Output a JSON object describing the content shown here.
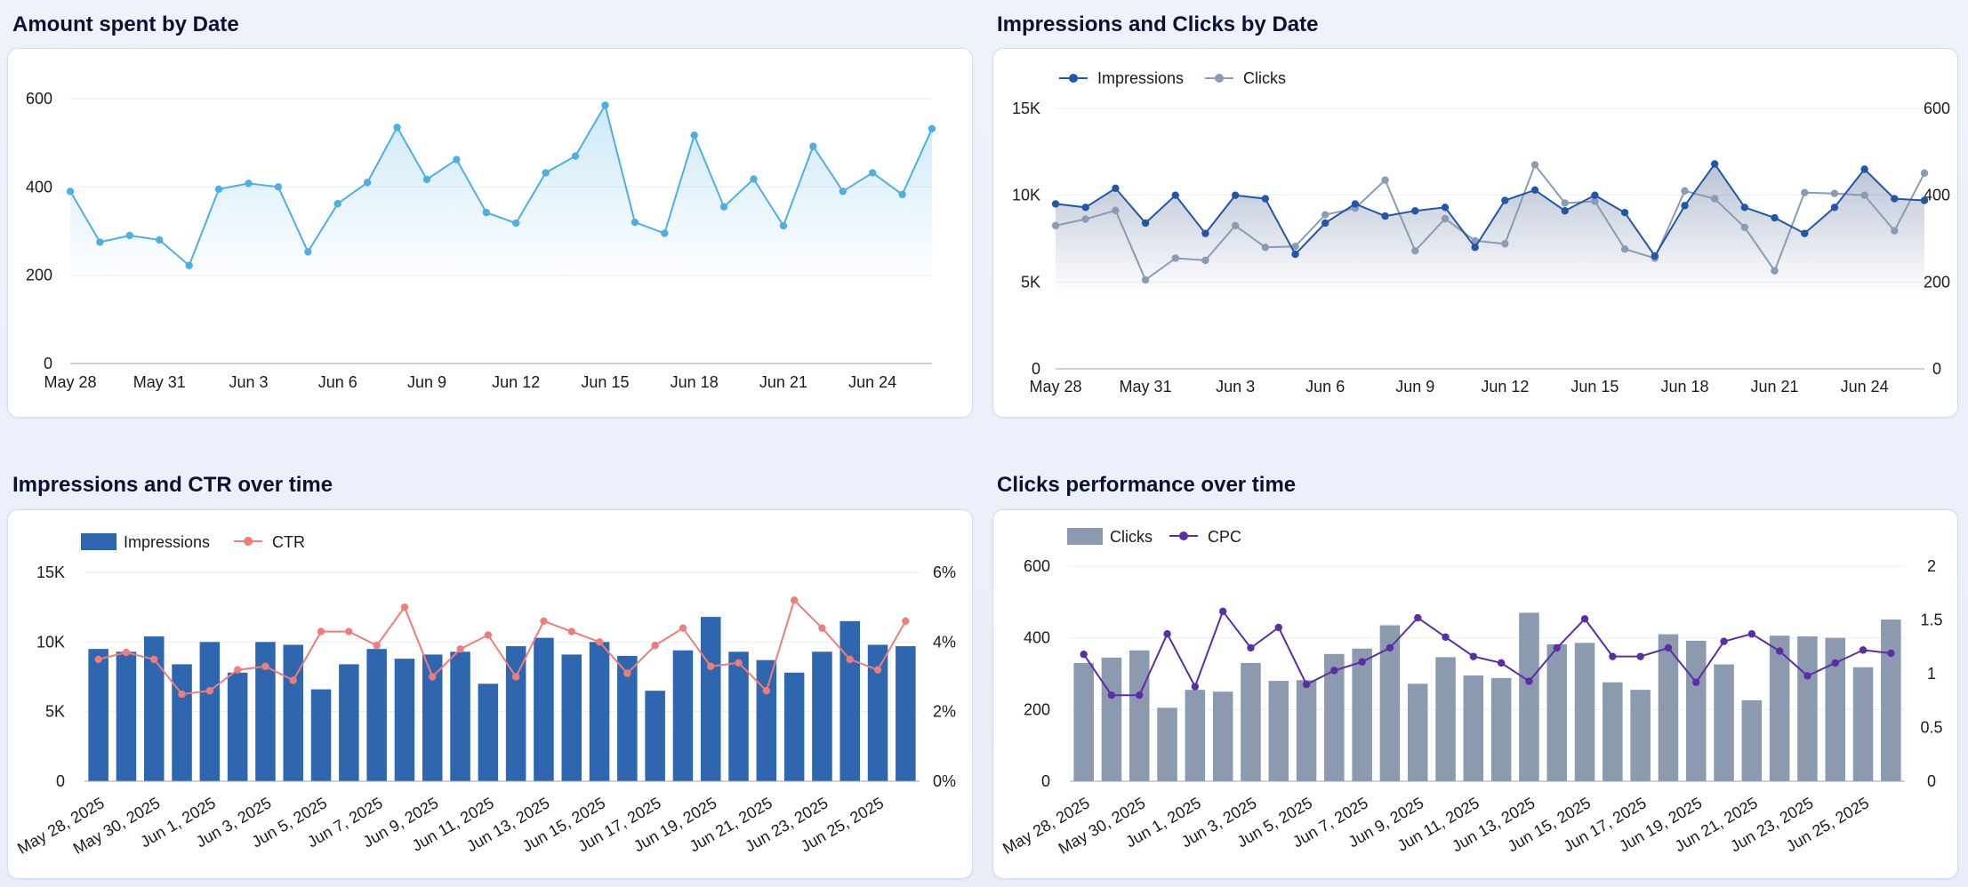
{
  "panels": {
    "p1_title": "Amount spent by Date",
    "p2_title": "Impressions and Clicks by Date",
    "p3_title": "Impressions and CTR over time",
    "p4_title": "Clicks performance over time"
  },
  "colors": {
    "spend": "#4faee6",
    "impressions": "#2257a8",
    "clicks_line": "#8a9bb4",
    "bar_impressions": "#2f66b0",
    "ctr": "#ee7d7a",
    "bar_clicks": "#8c9ab0",
    "cpc": "#5a2ea6",
    "grid": "#eceef2",
    "axis": "#9ea4b0"
  },
  "chart_data": [
    {
      "id": "spend",
      "type": "area",
      "title": "Amount spent by Date",
      "x_ticks": [
        "May 28",
        "May 31",
        "Jun 3",
        "Jun 6",
        "Jun 9",
        "Jun 12",
        "Jun 15",
        "Jun 18",
        "Jun 21",
        "Jun 24"
      ],
      "y_ticks": [
        "0",
        "200",
        "400",
        "600"
      ],
      "ylim": [
        0,
        600
      ],
      "series": [
        {
          "name": "Amount spent",
          "values": [
            390,
            275,
            290,
            280,
            222,
            395,
            408,
            400,
            253,
            362,
            410,
            535,
            417,
            462,
            342,
            318,
            432,
            470,
            585,
            320,
            295,
            517,
            355,
            418,
            312,
            492,
            390,
            432,
            383,
            532
          ]
        }
      ]
    },
    {
      "id": "imp_clicks",
      "type": "line",
      "title": "Impressions and Clicks by Date",
      "legend": [
        "Impressions",
        "Clicks"
      ],
      "x_ticks": [
        "May 28",
        "May 31",
        "Jun 3",
        "Jun 6",
        "Jun 9",
        "Jun 12",
        "Jun 15",
        "Jun 18",
        "Jun 21",
        "Jun 24"
      ],
      "y_ticks": [
        "0",
        "5K",
        "10K",
        "15K"
      ],
      "y2_ticks": [
        "0",
        "200",
        "400",
        "600"
      ],
      "ylim": [
        0,
        15000
      ],
      "y2lim": [
        0,
        600
      ],
      "series": [
        {
          "name": "Impressions",
          "axis": "left",
          "values": [
            9500,
            9300,
            10400,
            8400,
            10000,
            7800,
            10000,
            9800,
            6600,
            8400,
            9500,
            8800,
            9100,
            9300,
            7000,
            9700,
            10300,
            9100,
            10000,
            9000,
            6500,
            9400,
            11800,
            9300,
            8700,
            7800,
            9300,
            11500,
            9800,
            9700
          ]
        },
        {
          "name": "Clicks",
          "axis": "right",
          "values": [
            330,
            345,
            365,
            205,
            255,
            250,
            330,
            280,
            282,
            355,
            370,
            435,
            272,
            346,
            295,
            288,
            470,
            382,
            386,
            276,
            255,
            410,
            392,
            326,
            226,
            406,
            404,
            400,
            318,
            451
          ]
        }
      ]
    },
    {
      "id": "imp_ctr",
      "type": "bar",
      "title": "Impressions and CTR over time",
      "legend": [
        "Impressions",
        "CTR"
      ],
      "x_ticks": [
        "May 28, 2025",
        "May 30, 2025",
        "Jun 1, 2025",
        "Jun 3, 2025",
        "Jun 5, 2025",
        "Jun 7, 2025",
        "Jun 9, 2025",
        "Jun 11, 2025",
        "Jun 13, 2025",
        "Jun 15, 2025",
        "Jun 17, 2025",
        "Jun 19, 2025",
        "Jun 21, 2025",
        "Jun 23, 2025",
        "Jun 25, 2025"
      ],
      "y_ticks": [
        "0",
        "5K",
        "10K",
        "15K"
      ],
      "y2_ticks": [
        "0%",
        "2%",
        "4%",
        "6%"
      ],
      "ylim": [
        0,
        15000
      ],
      "y2lim": [
        0,
        6
      ],
      "series": [
        {
          "name": "Impressions",
          "axis": "left",
          "values": [
            9500,
            9300,
            10400,
            8400,
            10000,
            7800,
            10000,
            9800,
            6600,
            8400,
            9500,
            8800,
            9100,
            9300,
            7000,
            9700,
            10300,
            9100,
            10000,
            9000,
            6500,
            9400,
            11800,
            9300,
            8700,
            7800,
            9300,
            11500,
            9800,
            9700
          ]
        },
        {
          "name": "CTR",
          "axis": "right",
          "values": [
            3.5,
            3.7,
            3.5,
            2.5,
            2.6,
            3.2,
            3.3,
            2.9,
            4.3,
            4.3,
            3.9,
            5.0,
            3.0,
            3.8,
            4.2,
            3.0,
            4.6,
            4.3,
            4.0,
            3.1,
            3.9,
            4.4,
            3.3,
            3.4,
            2.6,
            5.2,
            4.4,
            3.5,
            3.2,
            4.6
          ]
        }
      ]
    },
    {
      "id": "clicks_cpc",
      "type": "bar",
      "title": "Clicks performance over time",
      "legend": [
        "Clicks",
        "CPC"
      ],
      "x_ticks": [
        "May 28, 2025",
        "May 30, 2025",
        "Jun 1, 2025",
        "Jun 3, 2025",
        "Jun 5, 2025",
        "Jun 7, 2025",
        "Jun 9, 2025",
        "Jun 11, 2025",
        "Jun 13, 2025",
        "Jun 15, 2025",
        "Jun 17, 2025",
        "Jun 19, 2025",
        "Jun 21, 2025",
        "Jun 23, 2025",
        "Jun 25, 2025"
      ],
      "y_ticks": [
        "0",
        "200",
        "400",
        "600"
      ],
      "y2_ticks": [
        "0",
        "0.5",
        "1",
        "1.5",
        "2"
      ],
      "ylim": [
        0,
        600
      ],
      "y2lim": [
        0,
        2
      ],
      "series": [
        {
          "name": "Clicks",
          "axis": "left",
          "values": [
            330,
            345,
            365,
            205,
            255,
            250,
            330,
            280,
            282,
            355,
            370,
            435,
            272,
            346,
            295,
            288,
            470,
            382,
            386,
            276,
            255,
            410,
            392,
            326,
            226,
            406,
            404,
            400,
            318,
            451
          ]
        },
        {
          "name": "CPC",
          "axis": "right",
          "values": [
            1.18,
            0.8,
            0.8,
            1.37,
            0.88,
            1.58,
            1.24,
            1.43,
            0.9,
            1.03,
            1.11,
            1.24,
            1.52,
            1.34,
            1.16,
            1.1,
            0.93,
            1.24,
            1.51,
            1.16,
            1.16,
            1.24,
            0.92,
            1.3,
            1.37,
            1.21,
            0.98,
            1.1,
            1.22,
            1.19
          ]
        }
      ]
    }
  ]
}
